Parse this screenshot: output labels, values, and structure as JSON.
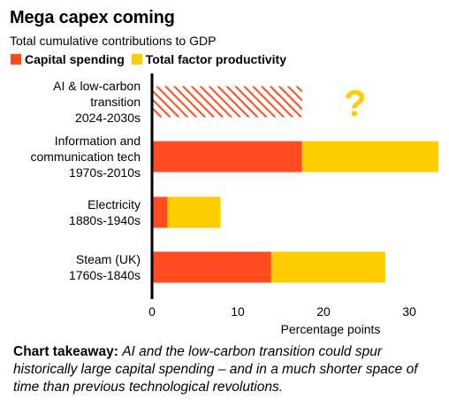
{
  "title": "Mega capex coming",
  "subtitle": "Total cumulative contributions to GDP",
  "colors": {
    "capital_spending": "#FF4B1F",
    "total_factor_productivity": "#FFCC00",
    "hatch": "#FF4B1F",
    "question_mark": "#FFCC00",
    "axis": "#000000"
  },
  "chart_data": {
    "type": "bar",
    "orientation": "horizontal",
    "stacked": true,
    "categories": [
      [
        "AI & low-carbon",
        "transition",
        "2024-2030s"
      ],
      [
        "Information and",
        "communication tech",
        "1970s-2010s"
      ],
      [
        "Electricity",
        "1880s-1940s"
      ],
      [
        "Steam (UK)",
        "1760s-1840s"
      ]
    ],
    "series": [
      {
        "name": "Capital spending",
        "values": [
          17.5,
          17.5,
          1.8,
          13.9
        ]
      },
      {
        "name": "Total factor productivity",
        "values": [
          null,
          15.9,
          6.2,
          13.3
        ]
      }
    ],
    "uncertain_categories": [
      0
    ],
    "uncertain_marker": "?",
    "xlabel": "Percentage points",
    "xlim": [
      0,
      33.5
    ],
    "xticks": [
      0,
      10,
      20,
      30
    ],
    "grid": false,
    "legend_position": "top-left"
  },
  "takeaway": {
    "lead": "Chart takeaway:",
    "body": "AI and the low-carbon transition could spur historically large capital spending – and in a much shorter space of time than previous technological revolutions."
  }
}
